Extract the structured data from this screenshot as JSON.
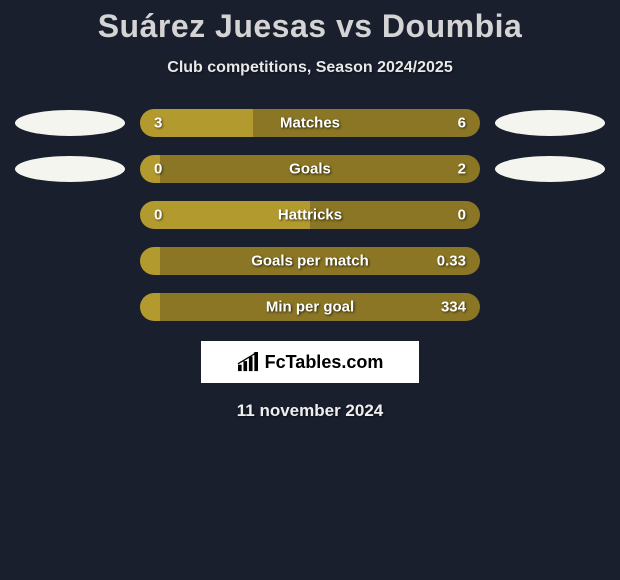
{
  "title": "Suárez Juesas vs Doumbia",
  "subtitle": "Club competitions, Season 2024/2025",
  "colors": {
    "left": "#b39a2f",
    "right": "#8a7624",
    "background": "#1a1f2e",
    "oval": "#f5f5f0"
  },
  "rows": [
    {
      "label": "Matches",
      "left_value": "3",
      "right_value": "6",
      "left_pct": 33.3,
      "right_pct": 66.7,
      "show_ovals": true,
      "oval_left_margin": 0
    },
    {
      "label": "Goals",
      "left_value": "0",
      "right_value": "2",
      "left_pct": 6,
      "right_pct": 94,
      "show_ovals": true,
      "oval_left_margin": 20
    },
    {
      "label": "Hattricks",
      "left_value": "0",
      "right_value": "0",
      "left_pct": 50,
      "right_pct": 50,
      "show_ovals": false
    },
    {
      "label": "Goals per match",
      "left_value": "",
      "right_value": "0.33",
      "left_pct": 6,
      "right_pct": 94,
      "show_ovals": false
    },
    {
      "label": "Min per goal",
      "left_value": "",
      "right_value": "334",
      "left_pct": 6,
      "right_pct": 94,
      "show_ovals": false
    }
  ],
  "logo_text": "FcTables.com",
  "date": "11 november 2024"
}
